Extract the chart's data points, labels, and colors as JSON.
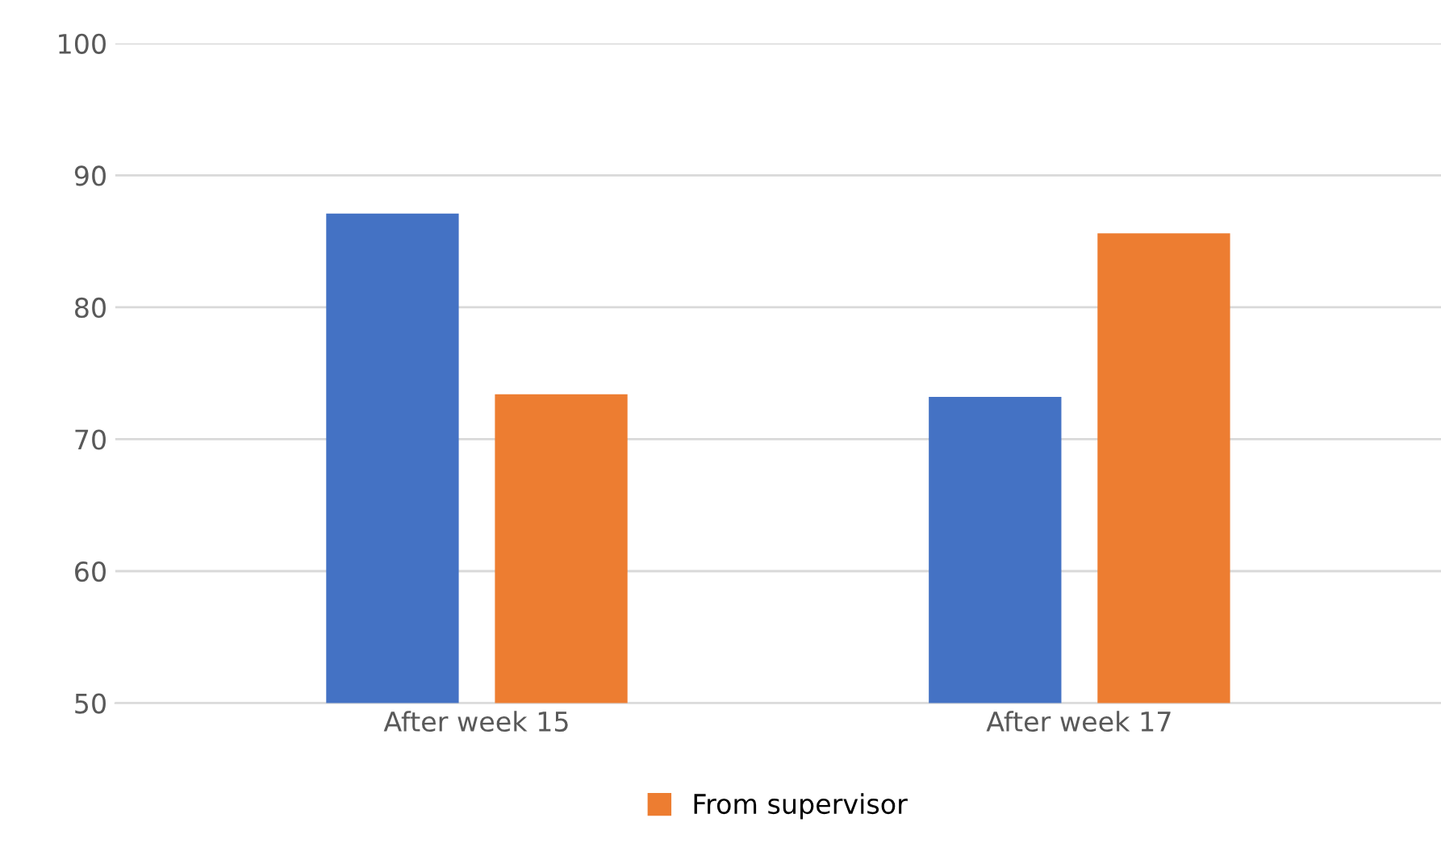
{
  "chart_data": {
    "type": "bar",
    "categories": [
      "After week 15",
      "After week 17"
    ],
    "series": [
      {
        "color": "#4472c4",
        "values": [
          87.1,
          73.2
        ]
      },
      {
        "name": "From supervisor",
        "color": "#ed7d31",
        "values": [
          73.4,
          85.6
        ]
      }
    ],
    "ylim": [
      50,
      100
    ],
    "yticks": [
      50,
      60,
      70,
      80,
      90,
      100
    ],
    "grid": "y",
    "legend": "bottom"
  }
}
